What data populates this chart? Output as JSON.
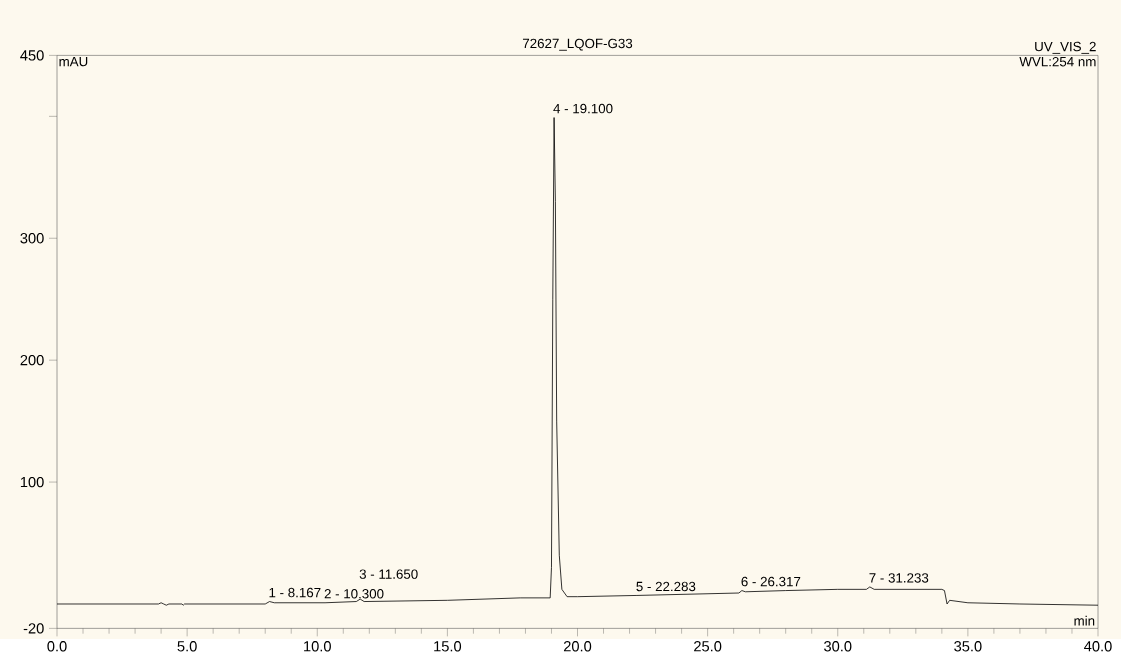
{
  "chart_data": {
    "type": "line",
    "title": "72627_LQOF-G33",
    "xlabel": "min",
    "ylabel": "mAU",
    "annotations": [
      "UV_VIS_2",
      "WVL:254 nm",
      {
        "text": "1 - 8.167",
        "x": 8.167,
        "y": 2
      },
      {
        "text": "2 - 10.300",
        "x": 10.3,
        "y": 1
      },
      {
        "text": "3 - 11.650",
        "x": 11.65,
        "y": 4
      },
      {
        "text": "4 - 19.100",
        "x": 19.1,
        "y": 399
      },
      {
        "text": "5 - 22.283",
        "x": 22.283,
        "y": 7
      },
      {
        "text": "6 - 26.317",
        "x": 26.317,
        "y": 11
      },
      {
        "text": "7 - 31.233",
        "x": 31.233,
        "y": 14
      }
    ],
    "series": [
      {
        "color": "#000000",
        "x": [
          0,
          3.9,
          4.0,
          4.1,
          4.2,
          4.3,
          4.8,
          4.85,
          4.9,
          8.0,
          8.167,
          8.35,
          10.3,
          11.5,
          11.65,
          11.8,
          15,
          17.8,
          18.95,
          19.0,
          19.05,
          19.1,
          19.15,
          19.2,
          19.3,
          19.4,
          19.6,
          20,
          22.283,
          26.2,
          26.317,
          26.45,
          28,
          30,
          31.1,
          31.233,
          31.4,
          34,
          34.1,
          34.2,
          34.3,
          35,
          37,
          40
        ],
        "values": [
          0,
          0,
          1,
          0,
          -1,
          0,
          0,
          -1,
          0,
          0,
          2,
          1,
          1,
          2,
          4,
          2,
          3,
          5,
          5,
          30,
          250,
          399,
          330,
          150,
          40,
          12,
          6,
          6,
          7,
          9,
          11,
          10,
          11,
          12,
          12,
          14,
          12,
          12,
          11,
          0,
          3,
          1,
          0,
          -1
        ]
      }
    ],
    "xlim": [
      0,
      40
    ],
    "ylim": [
      -20,
      450
    ],
    "xticks": [
      {
        "value": 0,
        "label": "0.0"
      },
      {
        "value": 5,
        "label": "5.0"
      },
      {
        "value": 10,
        "label": "10.0"
      },
      {
        "value": 15,
        "label": "15.0"
      },
      {
        "value": 20,
        "label": "20.0"
      },
      {
        "value": 25,
        "label": "25.0"
      },
      {
        "value": 30,
        "label": "30.0"
      },
      {
        "value": 35,
        "label": "35.0"
      },
      {
        "value": 40,
        "label": "40.0"
      }
    ],
    "yticks": [
      -20,
      100,
      200,
      300,
      {
        "value": 400,
        "label": null
      },
      450
    ],
    "marker": "none",
    "line_style": "solid"
  }
}
